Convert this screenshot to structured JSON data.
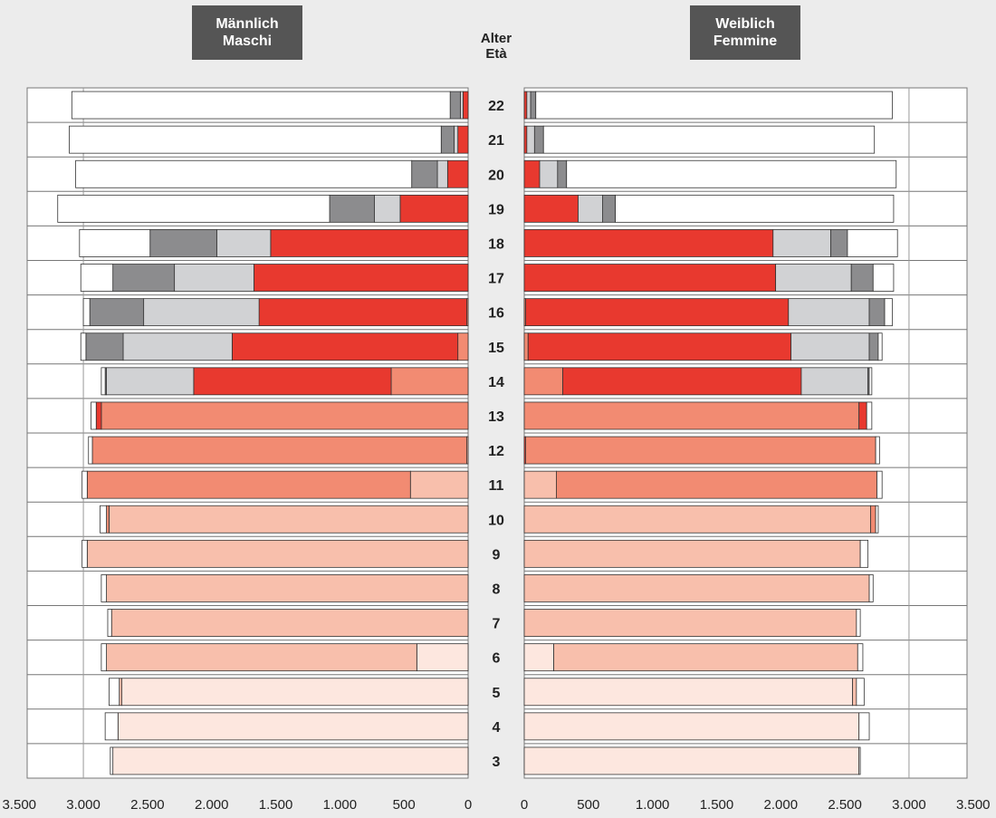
{
  "header": {
    "male_line1": "Männlich",
    "male_line2": "Maschi",
    "female_line1": "Weiblich",
    "female_line2": "Femmine",
    "age_line1": "Alter",
    "age_line2": "Età"
  },
  "colors": {
    "background": "#ececec",
    "header_box": "#555555",
    "white": "#ffffff",
    "dark_grey": "#8c8c8e",
    "light_grey": "#d1d2d4",
    "red": "#e8392f",
    "salmon": "#f28b72",
    "light_salmon": "#f8bfac",
    "pale_salmon": "#fde7df"
  },
  "chart_data": {
    "type": "bar",
    "subtype": "population-pyramid-stacked",
    "xlim": [
      0,
      3500
    ],
    "x_ticks_left": [
      "3.500",
      "3.000",
      "2.500",
      "2.000",
      "1.500",
      "1.000",
      "500",
      "0"
    ],
    "x_ticks_right": [
      "0",
      "500",
      "1.000",
      "1.500",
      "2.000",
      "2.500",
      "3.000",
      "3.500"
    ],
    "x_tick_values": [
      0,
      500,
      1000,
      1500,
      2000,
      2500,
      3000,
      3500
    ],
    "grid": "vertical at 500 on the outer panel edges",
    "note": "Each segment is listed from the age axis outward as [color, value]",
    "rows": [
      {
        "age": "22",
        "male": [
          [
            "red",
            40
          ],
          [
            "light_grey",
            20
          ],
          [
            "dark_grey",
            80
          ],
          [
            "white",
            2950
          ]
        ],
        "female": [
          [
            "red",
            20
          ],
          [
            "light_grey",
            30
          ],
          [
            "dark_grey",
            40
          ],
          [
            "white",
            2780
          ]
        ]
      },
      {
        "age": "21",
        "male": [
          [
            "red",
            80
          ],
          [
            "light_grey",
            30
          ],
          [
            "dark_grey",
            100
          ],
          [
            "white",
            2900
          ]
        ],
        "female": [
          [
            "red",
            20
          ],
          [
            "light_grey",
            60
          ],
          [
            "dark_grey",
            70
          ],
          [
            "white",
            2580
          ]
        ]
      },
      {
        "age": "20",
        "male": [
          [
            "red",
            160
          ],
          [
            "light_grey",
            80
          ],
          [
            "dark_grey",
            200
          ],
          [
            "white",
            2620
          ]
        ],
        "female": [
          [
            "red",
            120
          ],
          [
            "light_grey",
            140
          ],
          [
            "dark_grey",
            70
          ],
          [
            "white",
            2570
          ]
        ]
      },
      {
        "age": "19",
        "male": [
          [
            "red",
            530
          ],
          [
            "light_grey",
            200
          ],
          [
            "dark_grey",
            350
          ],
          [
            "white",
            2120
          ]
        ],
        "female": [
          [
            "red",
            420
          ],
          [
            "light_grey",
            190
          ],
          [
            "dark_grey",
            100
          ],
          [
            "white",
            2170
          ]
        ]
      },
      {
        "age": "18",
        "male": [
          [
            "red",
            1540
          ],
          [
            "light_grey",
            420
          ],
          [
            "dark_grey",
            520
          ],
          [
            "white",
            550
          ]
        ],
        "female": [
          [
            "red",
            1940
          ],
          [
            "light_grey",
            450
          ],
          [
            "dark_grey",
            130
          ],
          [
            "white",
            390
          ]
        ]
      },
      {
        "age": "17",
        "male": [
          [
            "red",
            1670
          ],
          [
            "light_grey",
            620
          ],
          [
            "dark_grey",
            480
          ],
          [
            "white",
            250
          ]
        ],
        "female": [
          [
            "red",
            1960
          ],
          [
            "light_grey",
            590
          ],
          [
            "dark_grey",
            170
          ],
          [
            "white",
            160
          ]
        ]
      },
      {
        "age": "16",
        "male": [
          [
            "salmon",
            10
          ],
          [
            "red",
            1620
          ],
          [
            "light_grey",
            900
          ],
          [
            "dark_grey",
            420
          ],
          [
            "white",
            50
          ]
        ],
        "female": [
          [
            "salmon",
            10
          ],
          [
            "red",
            2050
          ],
          [
            "light_grey",
            630
          ],
          [
            "dark_grey",
            120
          ],
          [
            "white",
            60
          ]
        ]
      },
      {
        "age": "15",
        "male": [
          [
            "salmon",
            80
          ],
          [
            "red",
            1760
          ],
          [
            "light_grey",
            850
          ],
          [
            "dark_grey",
            290
          ],
          [
            "white",
            40
          ]
        ],
        "female": [
          [
            "salmon",
            30
          ],
          [
            "red",
            2050
          ],
          [
            "light_grey",
            610
          ],
          [
            "dark_grey",
            70
          ],
          [
            "white",
            30
          ]
        ]
      },
      {
        "age": "14",
        "male": [
          [
            "salmon",
            600
          ],
          [
            "red",
            1540
          ],
          [
            "light_grey",
            680
          ],
          [
            "dark_grey",
            10
          ],
          [
            "white",
            30
          ]
        ],
        "female": [
          [
            "salmon",
            300
          ],
          [
            "red",
            1860
          ],
          [
            "light_grey",
            520
          ],
          [
            "dark_grey",
            10
          ],
          [
            "white",
            20
          ]
        ]
      },
      {
        "age": "13",
        "male": [
          [
            "salmon",
            2860
          ],
          [
            "red",
            40
          ],
          [
            "white",
            40
          ]
        ],
        "female": [
          [
            "salmon",
            2610
          ],
          [
            "red",
            60
          ],
          [
            "white",
            40
          ]
        ]
      },
      {
        "age": "12",
        "male": [
          [
            "light_salmon",
            10
          ],
          [
            "salmon",
            2920
          ],
          [
            "white",
            30
          ]
        ],
        "female": [
          [
            "red",
            10
          ],
          [
            "salmon",
            2730
          ],
          [
            "white",
            30
          ]
        ]
      },
      {
        "age": "11",
        "male": [
          [
            "light_salmon",
            450
          ],
          [
            "salmon",
            2520
          ],
          [
            "white",
            40
          ]
        ],
        "female": [
          [
            "light_salmon",
            250
          ],
          [
            "salmon",
            2500
          ],
          [
            "white",
            40
          ]
        ]
      },
      {
        "age": "10",
        "male": [
          [
            "light_salmon",
            2800
          ],
          [
            "salmon",
            20
          ],
          [
            "white",
            50
          ]
        ],
        "female": [
          [
            "light_salmon",
            2700
          ],
          [
            "salmon",
            40
          ],
          [
            "white",
            20
          ]
        ]
      },
      {
        "age": "9",
        "male": [
          [
            "light_salmon",
            2970
          ],
          [
            "white",
            40
          ]
        ],
        "female": [
          [
            "light_salmon",
            2620
          ],
          [
            "white",
            60
          ]
        ]
      },
      {
        "age": "8",
        "male": [
          [
            "light_salmon",
            2820
          ],
          [
            "white",
            40
          ]
        ],
        "female": [
          [
            "light_salmon",
            2690
          ],
          [
            "white",
            30
          ]
        ]
      },
      {
        "age": "7",
        "male": [
          [
            "light_salmon",
            2780
          ],
          [
            "white",
            30
          ]
        ],
        "female": [
          [
            "light_salmon",
            2590
          ],
          [
            "white",
            30
          ]
        ]
      },
      {
        "age": "6",
        "male": [
          [
            "pale_salmon",
            400
          ],
          [
            "light_salmon",
            2420
          ],
          [
            "white",
            40
          ]
        ],
        "female": [
          [
            "pale_salmon",
            230
          ],
          [
            "light_salmon",
            2370
          ],
          [
            "white",
            40
          ]
        ]
      },
      {
        "age": "5",
        "male": [
          [
            "pale_salmon",
            2700
          ],
          [
            "light_salmon",
            20
          ],
          [
            "white",
            80
          ]
        ],
        "female": [
          [
            "pale_salmon",
            2560
          ],
          [
            "light_salmon",
            30
          ],
          [
            "white",
            60
          ]
        ]
      },
      {
        "age": "4",
        "male": [
          [
            "pale_salmon",
            2730
          ],
          [
            "white",
            100
          ]
        ],
        "female": [
          [
            "pale_salmon",
            2610
          ],
          [
            "white",
            80
          ]
        ]
      },
      {
        "age": "3",
        "male": [
          [
            "pale_salmon",
            2770
          ],
          [
            "white",
            20
          ]
        ],
        "female": [
          [
            "pale_salmon",
            2610
          ],
          [
            "white",
            10
          ]
        ]
      }
    ]
  }
}
